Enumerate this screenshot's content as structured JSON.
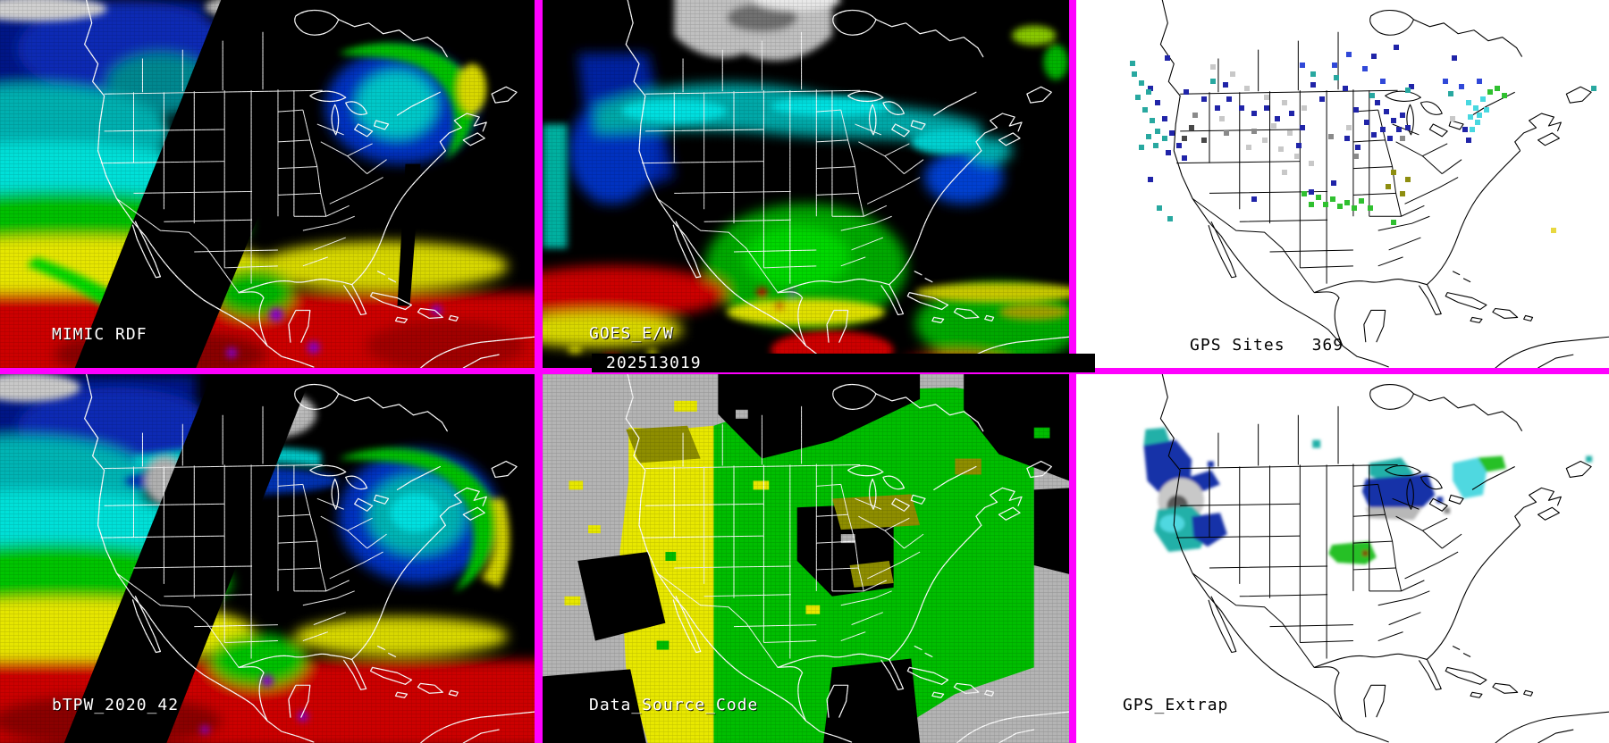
{
  "frame": {
    "border_color": "#ff00ff",
    "outline_color_dark_panels": "#ffffff",
    "outline_color_light_panels": "#000000"
  },
  "panels": {
    "mimic_rdf": {
      "label": "MIMIC RDF"
    },
    "goes_ew": {
      "label": "GOES_E/W",
      "timestamp": "202513019"
    },
    "gps_sites": {
      "label": "GPS Sites",
      "count": "369",
      "dot_palette": {
        "n": "#2024a8",
        "b": "#3048d8",
        "t": "#28a8a0",
        "c": "#48d8e0",
        "g": "#30c030",
        "l": "#c8c8c8",
        "m": "#8a8a8a",
        "d": "#484848",
        "o": "#8e8e10",
        "y": "#e8d840"
      },
      "dots": [
        [
          99,
          62,
          "n"
        ],
        [
          120,
          100,
          "n"
        ],
        [
          140,
          108,
          "n"
        ],
        [
          155,
          118,
          "n"
        ],
        [
          168,
          108,
          "n"
        ],
        [
          182,
          118,
          "n"
        ],
        [
          196,
          124,
          "n"
        ],
        [
          210,
          118,
          "n"
        ],
        [
          222,
          130,
          "n"
        ],
        [
          238,
          124,
          "n"
        ],
        [
          250,
          140,
          "n"
        ],
        [
          262,
          92,
          "n"
        ],
        [
          272,
          108,
          "n"
        ],
        [
          298,
          96,
          "n"
        ],
        [
          310,
          120,
          "n"
        ],
        [
          322,
          134,
          "n"
        ],
        [
          334,
          112,
          "n"
        ],
        [
          344,
          122,
          "n"
        ],
        [
          352,
          132,
          "n"
        ],
        [
          358,
          142,
          "n"
        ],
        [
          340,
          142,
          "n"
        ],
        [
          330,
          148,
          "n"
        ],
        [
          348,
          152,
          "n"
        ],
        [
          362,
          126,
          "n"
        ],
        [
          368,
          140,
          "n"
        ],
        [
          80,
          96,
          "n"
        ],
        [
          88,
          112,
          "n"
        ],
        [
          96,
          130,
          "n"
        ],
        [
          104,
          146,
          "n"
        ],
        [
          112,
          160,
          "n"
        ],
        [
          100,
          168,
          "n"
        ],
        [
          118,
          174,
          "n"
        ],
        [
          246,
          160,
          "n"
        ],
        [
          300,
          152,
          "n"
        ],
        [
          312,
          162,
          "n"
        ],
        [
          260,
          212,
          "n"
        ],
        [
          285,
          202,
          "n"
        ],
        [
          196,
          220,
          "n"
        ],
        [
          420,
          62,
          "n"
        ],
        [
          372,
          94,
          "n"
        ],
        [
          432,
          142,
          "n"
        ],
        [
          436,
          154,
          "n"
        ],
        [
          80,
          198,
          "n"
        ],
        [
          164,
          92,
          "n"
        ],
        [
          330,
          60,
          "n"
        ],
        [
          355,
          50,
          "n"
        ],
        [
          250,
          70,
          "b"
        ],
        [
          286,
          70,
          "b"
        ],
        [
          320,
          74,
          "b"
        ],
        [
          302,
          58,
          "b"
        ],
        [
          340,
          88,
          "b"
        ],
        [
          410,
          88,
          "b"
        ],
        [
          428,
          94,
          "b"
        ],
        [
          448,
          88,
          "b"
        ],
        [
          62,
          80,
          "t"
        ],
        [
          70,
          90,
          "t"
        ],
        [
          78,
          100,
          "t"
        ],
        [
          66,
          106,
          "t"
        ],
        [
          74,
          120,
          "t"
        ],
        [
          82,
          132,
          "t"
        ],
        [
          88,
          144,
          "t"
        ],
        [
          78,
          150,
          "t"
        ],
        [
          70,
          162,
          "t"
        ],
        [
          86,
          160,
          "t"
        ],
        [
          96,
          152,
          "t"
        ],
        [
          150,
          88,
          "t"
        ],
        [
          262,
          80,
          "t"
        ],
        [
          288,
          84,
          "t"
        ],
        [
          368,
          98,
          "t"
        ],
        [
          328,
          104,
          "t"
        ],
        [
          416,
          102,
          "t"
        ],
        [
          576,
          96,
          "t"
        ],
        [
          90,
          230,
          "t"
        ],
        [
          102,
          242,
          "t"
        ],
        [
          60,
          68,
          "t"
        ],
        [
          436,
          112,
          "c"
        ],
        [
          444,
          118,
          "c"
        ],
        [
          438,
          128,
          "c"
        ],
        [
          446,
          134,
          "c"
        ],
        [
          440,
          142,
          "c"
        ],
        [
          452,
          108,
          "c"
        ],
        [
          448,
          126,
          "c"
        ],
        [
          456,
          120,
          "c"
        ],
        [
          460,
          100,
          "g"
        ],
        [
          468,
          96,
          "g"
        ],
        [
          476,
          104,
          "g"
        ],
        [
          268,
          218,
          "g"
        ],
        [
          276,
          226,
          "g"
        ],
        [
          284,
          220,
          "g"
        ],
        [
          292,
          228,
          "g"
        ],
        [
          300,
          224,
          "g"
        ],
        [
          308,
          230,
          "g"
        ],
        [
          316,
          222,
          "g"
        ],
        [
          252,
          214,
          "g"
        ],
        [
          260,
          226,
          "g"
        ],
        [
          326,
          230,
          "g"
        ],
        [
          352,
          246,
          "g"
        ],
        [
          150,
          72,
          "l"
        ],
        [
          172,
          80,
          "l"
        ],
        [
          188,
          96,
          "l"
        ],
        [
          210,
          106,
          "l"
        ],
        [
          230,
          112,
          "l"
        ],
        [
          252,
          118,
          "l"
        ],
        [
          218,
          138,
          "l"
        ],
        [
          236,
          146,
          "l"
        ],
        [
          208,
          154,
          "l"
        ],
        [
          190,
          162,
          "l"
        ],
        [
          226,
          164,
          "l"
        ],
        [
          244,
          172,
          "l"
        ],
        [
          160,
          130,
          "l"
        ],
        [
          302,
          140,
          "l"
        ],
        [
          418,
          130,
          "l"
        ],
        [
          260,
          180,
          "l"
        ],
        [
          230,
          190,
          "l"
        ],
        [
          130,
          126,
          "m"
        ],
        [
          165,
          146,
          "m"
        ],
        [
          196,
          144,
          "m"
        ],
        [
          282,
          150,
          "m"
        ],
        [
          310,
          172,
          "m"
        ],
        [
          362,
          152,
          "m"
        ],
        [
          126,
          140,
          "d"
        ],
        [
          140,
          154,
          "d"
        ],
        [
          118,
          152,
          "d"
        ],
        [
          352,
          190,
          "o"
        ],
        [
          368,
          198,
          "o"
        ],
        [
          346,
          206,
          "o"
        ],
        [
          362,
          214,
          "o"
        ],
        [
          531,
          255,
          "y"
        ]
      ]
    },
    "btpw": {
      "label": "bTPW_2020_42"
    },
    "data_source_code": {
      "label": "Data_Source_Code",
      "colors": {
        "west_source_yellow": "#e8e800",
        "east_source_green": "#00be00",
        "background_gray": "#b4b4b4",
        "no_data_black": "#000000",
        "mixed_source_olive": "#8e8e00"
      }
    },
    "gps_extrap": {
      "label": "GPS_Extrap",
      "blob_palette": {
        "navy": "#1830a8",
        "teal": "#20b0a8",
        "cyan": "#50d8e0",
        "green": "#28c028",
        "gray": "#b8b8b8",
        "dark_gray": "#585858",
        "brown": "#7a5a10"
      }
    }
  }
}
